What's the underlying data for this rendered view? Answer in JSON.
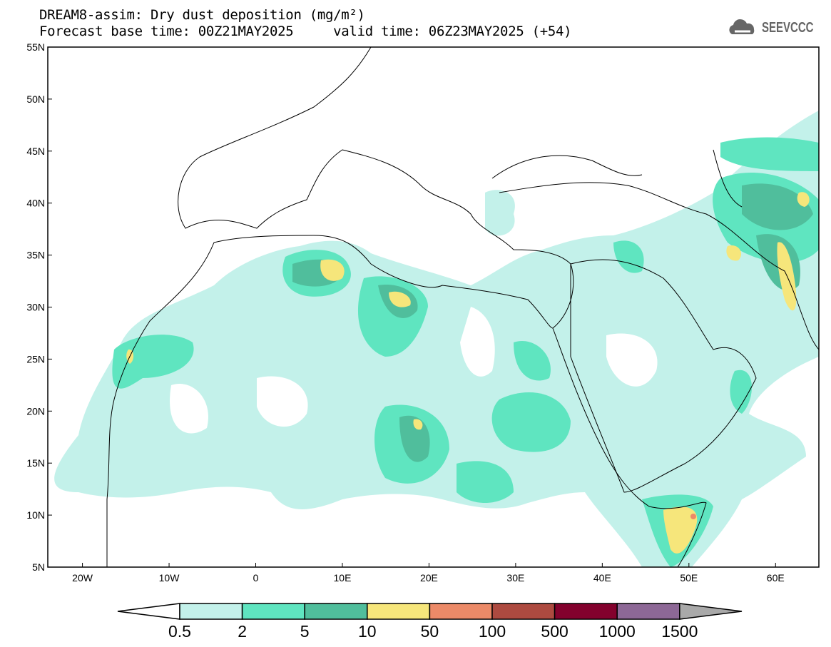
{
  "header": {
    "title": "DREAM8-assim: Dry dust deposition (mg/m²)",
    "subtitle": "Forecast base time: 00Z21MAY2025     valid time: 06Z23MAY2025 (+54)",
    "logo_text": "SEEVCCC"
  },
  "map": {
    "lon_range": [
      -24,
      65
    ],
    "lat_range": [
      5,
      55
    ],
    "lon_ticks": [
      {
        "v": -20,
        "label": "20W"
      },
      {
        "v": -10,
        "label": "10W"
      },
      {
        "v": 0,
        "label": "0"
      },
      {
        "v": 10,
        "label": "10E"
      },
      {
        "v": 20,
        "label": "20E"
      },
      {
        "v": 30,
        "label": "30E"
      },
      {
        "v": 40,
        "label": "40E"
      },
      {
        "v": 50,
        "label": "50E"
      },
      {
        "v": 60,
        "label": "60E"
      }
    ],
    "lat_ticks": [
      {
        "v": 55,
        "label": "55N"
      },
      {
        "v": 50,
        "label": "50N"
      },
      {
        "v": 45,
        "label": "45N"
      },
      {
        "v": 40,
        "label": "40N"
      },
      {
        "v": 35,
        "label": "35N"
      },
      {
        "v": 30,
        "label": "30N"
      },
      {
        "v": 25,
        "label": "25N"
      },
      {
        "v": 20,
        "label": "20N"
      },
      {
        "v": 15,
        "label": "15N"
      },
      {
        "v": 10,
        "label": "10N"
      },
      {
        "v": 5,
        "label": "5N"
      }
    ]
  },
  "colorbar": {
    "labels": [
      "0.5",
      "2",
      "5",
      "10",
      "50",
      "100",
      "500",
      "1000",
      "1500"
    ],
    "colors": [
      "#c3f1ea",
      "#5fe5c0",
      "#50be9c",
      "#f6e67b",
      "#ec8a68",
      "#ad4a40",
      "#83012d",
      "#8d6896"
    ],
    "under_color": "#ffffff",
    "over_color": "#a9a9a9"
  }
}
